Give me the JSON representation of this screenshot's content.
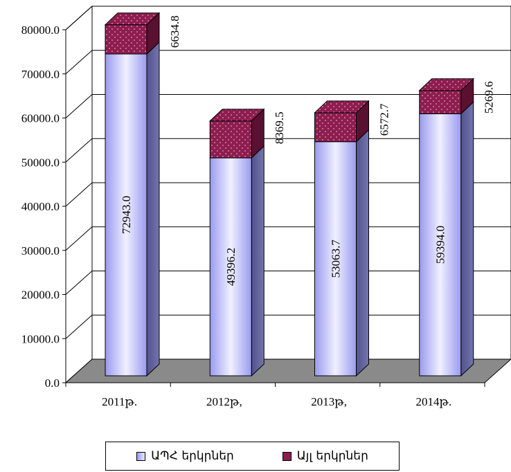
{
  "chart_data": {
    "type": "bar",
    "stacked": true,
    "three_d": true,
    "categories": [
      "2011թ.",
      "2012թ,",
      "2013թ,",
      "2014թ."
    ],
    "series": [
      {
        "name": "ԱՊՀ երկրներ",
        "values": [
          72943.0,
          49396.2,
          53063.7,
          59394.0
        ],
        "labels": [
          "72943.0",
          "49396.2",
          "53063.7",
          "59394.0"
        ]
      },
      {
        "name": "Այլ երկրներ",
        "values": [
          6634.8,
          8369.5,
          6572.7,
          5269.6
        ],
        "labels": [
          "6634.8",
          "8369.5",
          "6572.7",
          "5269.6"
        ]
      }
    ],
    "yticks": [
      "0.0",
      "10000.0",
      "20000.0",
      "30000.0",
      "40000.0",
      "50000.0",
      "60000.0",
      "70000.0",
      "80000.0"
    ],
    "ylim": [
      0,
      80000
    ],
    "grid": true,
    "legend_position": "bottom",
    "colors": {
      "series1": "#a3a3f2",
      "series1_light": "#ececff",
      "series1_side": "#5a5a94",
      "series2": "#8e1d4f",
      "series2_top": "#6e1038",
      "floor": "#8a8a8a"
    }
  }
}
